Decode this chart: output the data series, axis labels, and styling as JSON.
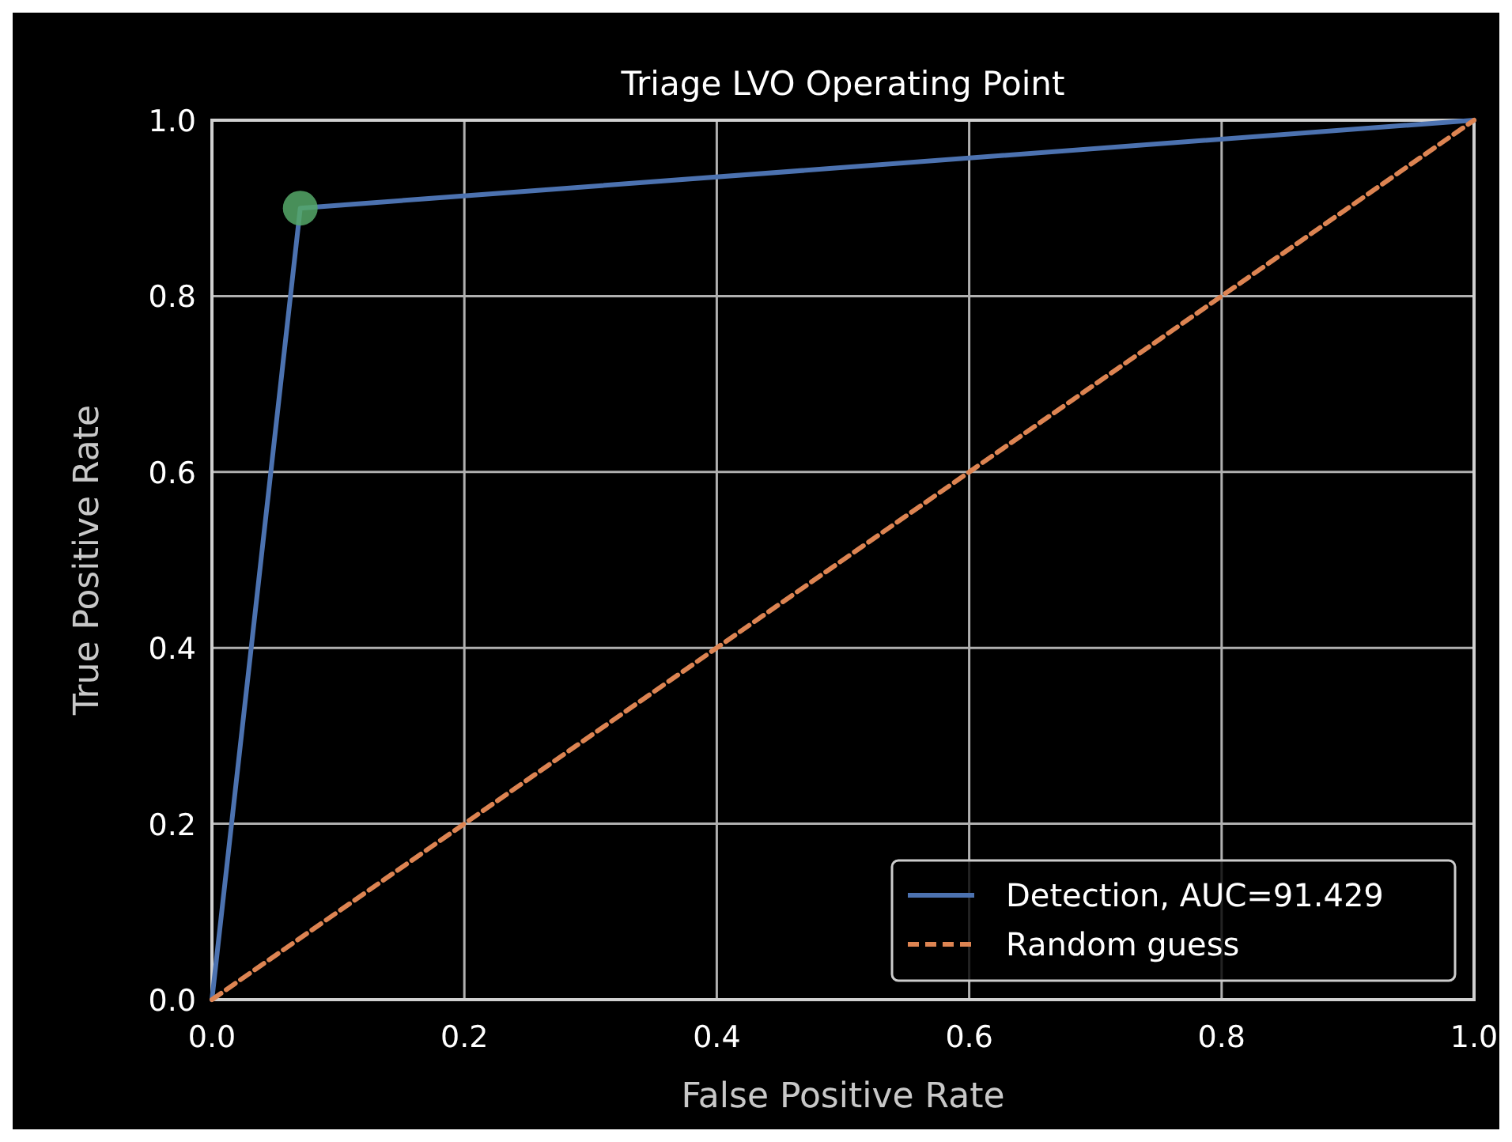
{
  "chart_data": {
    "type": "line",
    "title": "Triage LVO Operating Point",
    "xlabel": "False Positive Rate",
    "ylabel": "True Positive Rate",
    "xlim": [
      0,
      1
    ],
    "ylim": [
      0,
      1
    ],
    "xticks": [
      {
        "value": 0,
        "label": "0.0"
      },
      {
        "value": 0.2,
        "label": "0.2"
      },
      {
        "value": 0.4,
        "label": "0.4"
      },
      {
        "value": 0.6,
        "label": "0.6"
      },
      {
        "value": 0.8,
        "label": "0.8"
      },
      {
        "value": 1,
        "label": "1.0"
      }
    ],
    "yticks": [
      {
        "value": 0,
        "label": "0.0"
      },
      {
        "value": 0.2,
        "label": "0.2"
      },
      {
        "value": 0.4,
        "label": "0.4"
      },
      {
        "value": 0.6,
        "label": "0.6"
      },
      {
        "value": 0.8,
        "label": "0.8"
      },
      {
        "value": 1,
        "label": "1.0"
      }
    ],
    "grid": true,
    "legend": "bottom right",
    "series": [
      {
        "name": "Detection, AUC=91.429",
        "color": "#4c72b0",
        "x": [
          0,
          0.07,
          1
        ],
        "values": [
          0,
          0.9,
          1
        ],
        "line_style": "solid"
      },
      {
        "name": "Random guess",
        "color": "#dd8452",
        "x": [
          0,
          1
        ],
        "values": [
          0,
          1
        ],
        "line_style": "dashed"
      },
      {
        "type": "scatter",
        "color": "#55a868",
        "x": [
          0.07
        ],
        "values": [
          0.9
        ],
        "marker": "circle"
      }
    ]
  }
}
